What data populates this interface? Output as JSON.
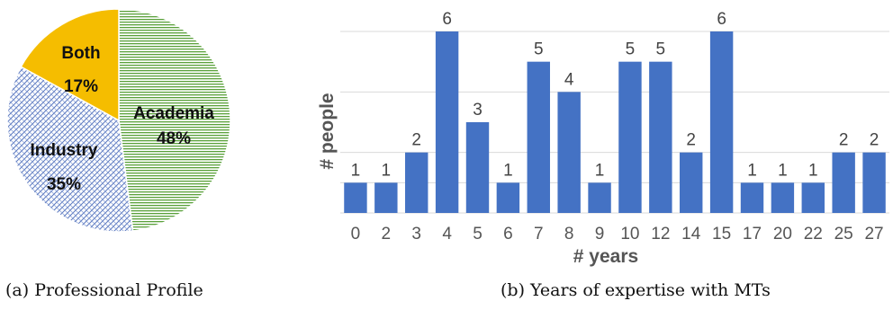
{
  "chart_data": [
    {
      "type": "pie",
      "slices": [
        {
          "label": "Academia",
          "value": 48,
          "value_label": "48%",
          "color": "#5aa13a",
          "pattern": "horizontal-lines"
        },
        {
          "label": "Industry",
          "value": 35,
          "value_label": "35%",
          "color": "#5b78c0",
          "pattern": "diagonal-weave"
        },
        {
          "label": "Both",
          "value": 17,
          "value_label": "17%",
          "color": "#f5bd00",
          "pattern": "solid"
        }
      ],
      "caption": "(a) Professional Profile"
    },
    {
      "type": "bar",
      "categories": [
        "0",
        "2",
        "3",
        "4",
        "5",
        "6",
        "7",
        "8",
        "9",
        "10",
        "12",
        "14",
        "15",
        "17",
        "20",
        "22",
        "25",
        "27"
      ],
      "values": [
        1,
        1,
        2,
        6,
        3,
        1,
        5,
        4,
        1,
        5,
        5,
        2,
        6,
        1,
        1,
        1,
        2,
        2
      ],
      "xlabel": "# years",
      "ylabel": "# people",
      "ylim": [
        0,
        6
      ],
      "grid": true,
      "bar_color": "#4472c4",
      "caption": "(b) Years of expertise with MTs"
    }
  ]
}
